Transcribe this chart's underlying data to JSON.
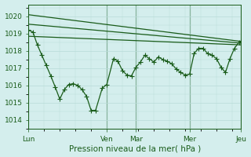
{
  "background_color": "#d4eeed",
  "grid_color": "#b8dbd8",
  "line_color": "#1a5c1a",
  "title": "Pression niveau de la mer( hPa )",
  "ylim": [
    1013.5,
    1020.7
  ],
  "yticks": [
    1014,
    1015,
    1016,
    1017,
    1018,
    1019,
    1020
  ],
  "day_labels": [
    "Lun",
    "Ven",
    "Mar",
    "Mer",
    "Jeu"
  ],
  "day_positions": [
    0,
    35,
    48,
    72,
    95
  ],
  "total_points": 96,
  "ref_lines": [
    [
      [
        0,
        95
      ],
      [
        1020.1,
        1018.55
      ]
    ],
    [
      [
        0,
        95
      ],
      [
        1019.55,
        1018.45
      ]
    ],
    [
      [
        0,
        95
      ],
      [
        1018.85,
        1018.35
      ]
    ]
  ],
  "main_series_x": [
    0,
    2,
    4,
    6,
    8,
    10,
    12,
    14,
    16,
    18,
    20,
    22,
    24,
    26,
    28,
    30,
    33,
    35,
    38,
    40,
    42,
    44,
    46,
    48,
    50,
    52,
    54,
    56,
    58,
    60,
    62,
    64,
    66,
    68,
    70,
    72,
    74,
    76,
    78,
    80,
    82,
    84,
    86,
    88,
    90,
    92,
    94,
    95
  ],
  "main_series_y": [
    1019.2,
    1019.1,
    1018.35,
    1017.75,
    1017.15,
    1016.55,
    1015.9,
    1015.2,
    1015.75,
    1016.05,
    1016.1,
    1016.0,
    1015.75,
    1015.35,
    1014.55,
    1014.55,
    1015.85,
    1016.05,
    1017.55,
    1017.4,
    1016.85,
    1016.6,
    1016.55,
    1017.05,
    1017.35,
    1017.75,
    1017.55,
    1017.35,
    1017.65,
    1017.5,
    1017.4,
    1017.25,
    1016.95,
    1016.75,
    1016.6,
    1016.65,
    1017.85,
    1018.15,
    1018.15,
    1017.85,
    1017.75,
    1017.55,
    1017.05,
    1016.75,
    1017.55,
    1018.15,
    1018.5,
    1018.55
  ]
}
